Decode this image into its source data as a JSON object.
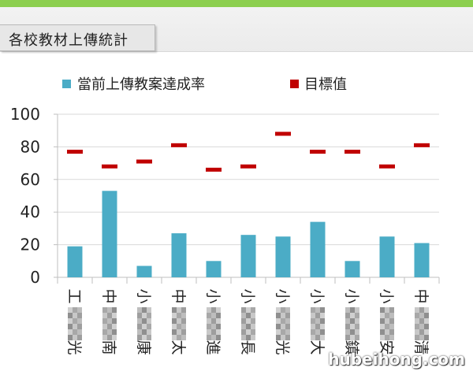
{
  "page": {
    "title": "各校教材上傳統計",
    "watermark": "hubeihong.com"
  },
  "colors": {
    "bar": "#4bacc6",
    "target": "#c00000",
    "axis": "#bfbfbf",
    "top_bar": "#8ccf4f"
  },
  "chart_data": {
    "type": "bar",
    "title": "",
    "xlabel": "",
    "ylabel": "",
    "ylim": [
      0,
      100
    ],
    "yticks": [
      0,
      20,
      40,
      60,
      80,
      100
    ],
    "legend_position": "top",
    "categories": [
      {
        "top": "工",
        "bottom": "光"
      },
      {
        "top": "中",
        "bottom": "南"
      },
      {
        "top": "小",
        "bottom": "康"
      },
      {
        "top": "中",
        "bottom": "太"
      },
      {
        "top": "小",
        "bottom": "進"
      },
      {
        "top": "小",
        "bottom": "長"
      },
      {
        "top": "小",
        "bottom": "光"
      },
      {
        "top": "小",
        "bottom": "大"
      },
      {
        "top": "小",
        "bottom": "鎮"
      },
      {
        "top": "小",
        "bottom": "安"
      },
      {
        "top": "中",
        "bottom": "清"
      }
    ],
    "series": [
      {
        "name": "當前上傳教案達成率",
        "kind": "bar",
        "values": [
          19,
          53,
          7,
          27,
          10,
          26,
          25,
          34,
          10,
          25,
          21
        ]
      },
      {
        "name": "目標值",
        "kind": "marker",
        "values": [
          77,
          68,
          71,
          81,
          66,
          68,
          88,
          77,
          77,
          68,
          81
        ]
      }
    ]
  }
}
